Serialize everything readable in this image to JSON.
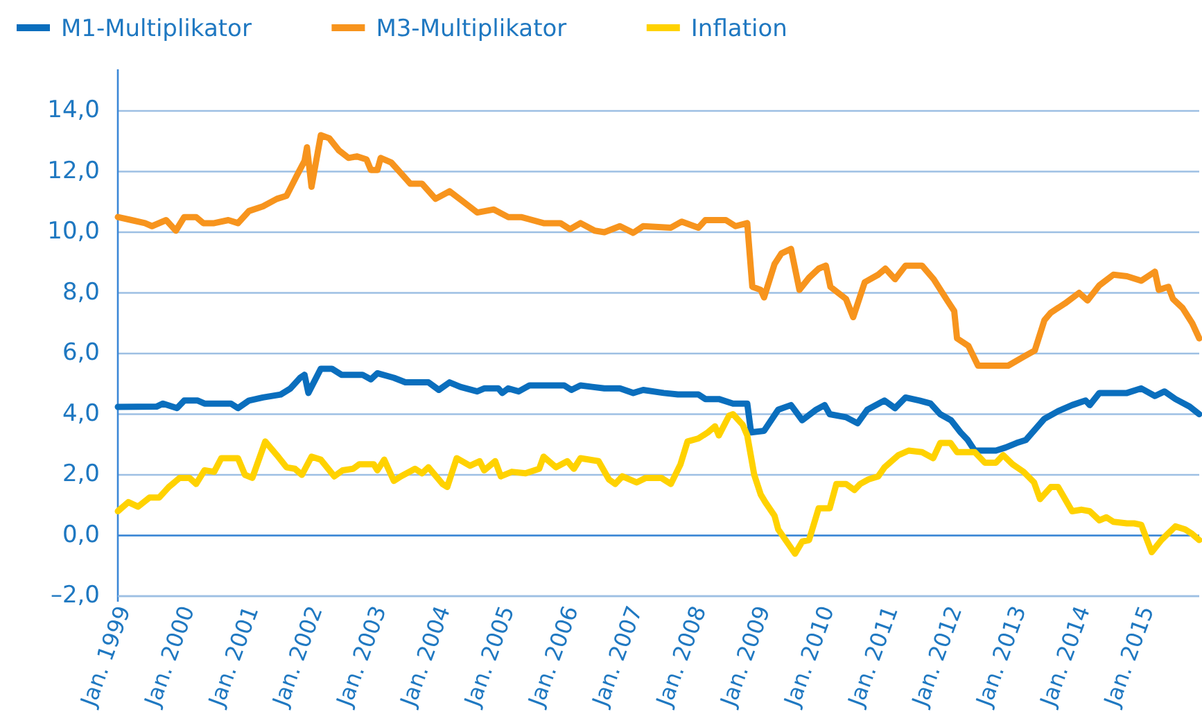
{
  "chart_data": {
    "type": "line",
    "xlim": [
      "1999-01-01",
      "2015-11-28"
    ],
    "ylim": [
      -2,
      14
    ],
    "xticks": [
      {
        "value": "1999-01",
        "label": "Jan. 1999"
      },
      {
        "value": "2000-01",
        "label": "Jan. 2000"
      },
      {
        "value": "2001-01",
        "label": "Jan. 2001"
      },
      {
        "value": "2002-01",
        "label": "Jan. 2002"
      },
      {
        "value": "2003-01",
        "label": "Jan. 2003"
      },
      {
        "value": "2004-01",
        "label": "Jan. 2004"
      },
      {
        "value": "2005-01",
        "label": "Jan. 2005"
      },
      {
        "value": "2006-01",
        "label": "Jan. 2006"
      },
      {
        "value": "2007-01",
        "label": "Jan. 2007"
      },
      {
        "value": "2008-01",
        "label": "Jan. 2008"
      },
      {
        "value": "2009-01",
        "label": "Jan. 2009"
      },
      {
        "value": "2010-01",
        "label": "Jan. 2010"
      },
      {
        "value": "2011-01",
        "label": "Jan. 2011"
      },
      {
        "value": "2012-01",
        "label": "Jan. 2012"
      },
      {
        "value": "2013-01",
        "label": "Jan. 2013"
      },
      {
        "value": "2014-01",
        "label": "Jan. 2014"
      },
      {
        "value": "2015-01",
        "label": "Jan. 2015"
      }
    ],
    "yticks": [
      {
        "value": -2,
        "label": "–2,0"
      },
      {
        "value": 0,
        "label": "0,0"
      },
      {
        "value": 2,
        "label": "2,0"
      },
      {
        "value": 4,
        "label": "4,0"
      },
      {
        "value": 6,
        "label": "6,0"
      },
      {
        "value": 8,
        "label": "8,0"
      },
      {
        "value": 10,
        "label": "10,0"
      },
      {
        "value": 12,
        "label": "12,0"
      },
      {
        "value": 14,
        "label": "14,0"
      }
    ],
    "grid": "y",
    "ref_lines": [
      {
        "axis": "y",
        "value": 0,
        "color": "#3b87d6"
      }
    ],
    "legend": "top left",
    "marker": "none",
    "line_style": "solid",
    "series": [
      {
        "name": "M1-Multiplikator",
        "color": "#0a6ebd",
        "x": [
          "1999-01-01",
          "1999-08-10",
          "1999-09-16",
          "1999-12-05",
          "2000-01-15",
          "2000-04-01",
          "2000-05-10",
          "2000-10-08",
          "2000-11-17",
          "2001-01-19",
          "2001-04-08",
          "2001-07-19",
          "2001-09-13",
          "2001-11-07",
          "2001-12-02",
          "2001-12-24",
          "2002-03-05",
          "2002-05-07",
          "2002-07-01",
          "2002-10-29",
          "2002-12-16",
          "2003-01-22",
          "2003-04-26",
          "2003-07-01",
          "2003-11-10",
          "2004-01-08",
          "2004-03-09",
          "2004-05-10",
          "2004-08-14",
          "2004-09-23",
          "2004-12-13",
          "2005-01-04",
          "2005-02-07",
          "2005-04-08",
          "2005-06-09",
          "2005-12-24",
          "2006-02-03",
          "2006-03-27",
          "2006-06-02",
          "2006-08-10",
          "2006-11-07",
          "2007-01-22",
          "2007-03-20",
          "2007-07-15",
          "2007-10-04",
          "2008-01-29",
          "2008-03-09",
          "2008-05-25",
          "2008-08-14",
          "2008-11-03",
          "2008-11-25",
          "2009-02-07",
          "2009-04-29",
          "2009-07-11",
          "2009-09-13",
          "2009-12-02",
          "2010-01-19",
          "2010-02-17",
          "2010-05-21",
          "2010-07-26",
          "2010-09-20",
          "2010-12-27",
          "2011-02-25",
          "2011-04-26",
          "2011-07-15",
          "2011-09-16",
          "2011-11-10",
          "2012-01-11",
          "2012-03-05",
          "2012-04-15",
          "2012-05-25",
          "2012-09-23",
          "2012-11-17",
          "2013-01-19",
          "2013-03-13",
          "2013-06-27",
          "2013-09-13",
          "2013-12-02",
          "2014-02-17",
          "2014-03-13",
          "2014-05-07",
          "2014-10-11",
          "2015-01-01",
          "2015-03-20",
          "2015-05-14",
          "2015-07-15",
          "2015-10-04",
          "2015-11-28"
        ],
        "values": [
          4.24,
          4.25,
          4.35,
          4.2,
          4.45,
          4.45,
          4.35,
          4.35,
          4.2,
          4.45,
          4.55,
          4.65,
          4.85,
          5.2,
          5.3,
          4.7,
          5.5,
          5.5,
          5.3,
          5.3,
          5.15,
          5.35,
          5.2,
          5.05,
          5.05,
          4.8,
          5.05,
          4.9,
          4.75,
          4.85,
          4.85,
          4.7,
          4.85,
          4.75,
          4.95,
          4.95,
          4.8,
          4.95,
          4.9,
          4.85,
          4.85,
          4.7,
          4.8,
          4.7,
          4.65,
          4.65,
          4.5,
          4.5,
          4.35,
          4.35,
          3.4,
          3.45,
          4.15,
          4.3,
          3.8,
          4.15,
          4.3,
          4.0,
          3.9,
          3.7,
          4.15,
          4.45,
          4.2,
          4.55,
          4.45,
          4.35,
          4.0,
          3.8,
          3.4,
          3.15,
          2.8,
          2.8,
          2.9,
          3.05,
          3.15,
          3.85,
          4.1,
          4.3,
          4.45,
          4.3,
          4.7,
          4.7,
          4.85,
          4.6,
          4.75,
          4.5,
          4.25,
          4.0
        ]
      },
      {
        "name": "M3-Multiplikator",
        "color": "#f7941d",
        "x": [
          "1999-01-01",
          "1999-03-20",
          "1999-06-05",
          "1999-07-15",
          "1999-10-04",
          "1999-11-28",
          "2000-01-15",
          "2000-03-23",
          "2000-05-03",
          "2000-07-04",
          "2000-09-23",
          "2000-11-17",
          "2001-01-19",
          "2001-04-08",
          "2001-06-27",
          "2001-08-21",
          "2001-10-22",
          "2001-12-02",
          "2001-12-16",
          "2002-01-11",
          "2002-03-05",
          "2002-04-22",
          "2002-06-16",
          "2002-08-10",
          "2002-09-27",
          "2002-11-21",
          "2002-12-16",
          "2003-01-22",
          "2003-02-10",
          "2003-04-11",
          "2003-06-05",
          "2003-07-29",
          "2003-10-04",
          "2003-12-20",
          "2004-03-09",
          "2004-05-28",
          "2004-08-14",
          "2004-11-17",
          "2005-02-07",
          "2005-04-22",
          "2005-08-28",
          "2005-12-02",
          "2006-01-26",
          "2006-03-27",
          "2006-06-16",
          "2006-08-10",
          "2006-11-07",
          "2007-01-22",
          "2007-03-20",
          "2007-08-25",
          "2007-10-26",
          "2008-01-29",
          "2008-03-09",
          "2008-07-04",
          "2008-08-28",
          "2008-11-03",
          "2008-12-02",
          "2009-01-19",
          "2009-02-07",
          "2009-04-08",
          "2009-05-17",
          "2009-07-11",
          "2009-08-28",
          "2009-10-22",
          "2009-12-16",
          "2010-01-26",
          "2010-02-21",
          "2010-05-21",
          "2010-07-01",
          "2010-09-05",
          "2010-11-21",
          "2011-01-01",
          "2011-02-25",
          "2011-04-26",
          "2011-07-29",
          "2011-10-04",
          "2011-12-20",
          "2012-01-29",
          "2012-02-14",
          "2012-04-19",
          "2012-06-13",
          "2012-12-02",
          "2013-03-02",
          "2013-05-03",
          "2013-06-27",
          "2013-08-03",
          "2013-10-22",
          "2014-01-11",
          "2014-02-28",
          "2014-05-07",
          "2014-07-26",
          "2014-10-11",
          "2015-01-01",
          "2015-03-20",
          "2015-04-11",
          "2015-06-05",
          "2015-07-01",
          "2015-08-25",
          "2015-10-19",
          "2015-11-28"
        ],
        "values": [
          10.5,
          10.4,
          10.3,
          10.2,
          10.4,
          10.05,
          10.5,
          10.5,
          10.3,
          10.3,
          10.4,
          10.3,
          10.7,
          10.85,
          11.1,
          11.2,
          11.9,
          12.35,
          12.8,
          11.5,
          13.2,
          13.1,
          12.7,
          12.45,
          12.5,
          12.4,
          12.05,
          12.05,
          12.45,
          12.3,
          11.95,
          11.6,
          11.6,
          11.1,
          11.35,
          11.0,
          10.65,
          10.75,
          10.5,
          10.5,
          10.3,
          10.3,
          10.1,
          10.3,
          10.05,
          10.0,
          10.2,
          9.98,
          10.2,
          10.15,
          10.35,
          10.15,
          10.4,
          10.4,
          10.2,
          10.3,
          8.2,
          8.1,
          7.85,
          8.95,
          9.3,
          9.45,
          8.1,
          8.5,
          8.8,
          8.9,
          8.2,
          7.8,
          7.2,
          8.35,
          8.6,
          8.8,
          8.45,
          8.9,
          8.9,
          8.45,
          7.75,
          7.4,
          6.5,
          6.25,
          5.6,
          5.6,
          5.9,
          6.1,
          7.1,
          7.35,
          7.65,
          8.0,
          7.75,
          8.25,
          8.6,
          8.55,
          8.4,
          8.7,
          8.1,
          8.2,
          7.8,
          7.5,
          7.0,
          6.5
        ]
      },
      {
        "name": "Inflation",
        "color": "#ffd200",
        "x": [
          "1999-01-01",
          "1999-03-02",
          "1999-04-26",
          "1999-07-01",
          "1999-08-25",
          "1999-10-19",
          "1999-12-20",
          "2000-02-14",
          "2000-03-23",
          "2000-05-10",
          "2000-07-04",
          "2000-08-14",
          "2000-11-17",
          "2000-12-27",
          "2001-02-07",
          "2001-04-22",
          "2001-06-27",
          "2001-08-21",
          "2001-10-08",
          "2001-11-17",
          "2002-01-11",
          "2002-03-05",
          "2002-05-21",
          "2002-07-08",
          "2002-09-05",
          "2002-10-11",
          "2003-01-01",
          "2003-01-22",
          "2003-03-02",
          "2003-04-26",
          "2003-06-05",
          "2003-08-25",
          "2003-10-04",
          "2003-11-10",
          "2004-01-29",
          "2004-02-25",
          "2004-04-19",
          "2004-07-04",
          "2004-08-28",
          "2004-09-23",
          "2004-11-25",
          "2004-12-27",
          "2005-02-28",
          "2005-05-17",
          "2005-08-03",
          "2005-08-28",
          "2005-11-07",
          "2006-01-11",
          "2006-02-17",
          "2006-03-27",
          "2006-07-08",
          "2006-09-05",
          "2006-10-11",
          "2006-11-21",
          "2007-02-10",
          "2007-04-04",
          "2007-07-01",
          "2007-08-25",
          "2007-10-19",
          "2007-11-28",
          "2008-01-29",
          "2008-03-23",
          "2008-05-03",
          "2008-05-25",
          "2008-07-22",
          "2008-08-14",
          "2008-10-08",
          "2008-11-03",
          "2008-12-13",
          "2009-01-19",
          "2009-02-14",
          "2009-04-08",
          "2009-04-29",
          "2009-08-03",
          "2009-09-13",
          "2009-10-22",
          "2009-12-16",
          "2010-02-17",
          "2010-03-27",
          "2010-05-21",
          "2010-07-08",
          "2010-08-10",
          "2010-09-27",
          "2010-11-21",
          "2010-12-27",
          "2011-03-16",
          "2011-05-14",
          "2011-07-29",
          "2011-10-01",
          "2011-11-10",
          "2012-01-08",
          "2012-02-14",
          "2012-05-25",
          "2012-07-22",
          "2012-09-23",
          "2012-11-03",
          "2012-12-27",
          "2013-02-28",
          "2013-04-29",
          "2013-06-02",
          "2013-08-03",
          "2013-09-13",
          "2013-12-02",
          "2014-01-26",
          "2014-03-13",
          "2014-05-07",
          "2014-06-16",
          "2014-07-26",
          "2014-10-11",
          "2014-11-21",
          "2015-01-01",
          "2015-03-02",
          "2015-04-26",
          "2015-07-15",
          "2015-09-09",
          "2015-10-19",
          "2015-11-28"
        ],
        "values": [
          0.8,
          1.1,
          0.95,
          1.25,
          1.25,
          1.6,
          1.9,
          1.9,
          1.7,
          2.15,
          2.1,
          2.55,
          2.55,
          2.0,
          1.9,
          3.1,
          2.65,
          2.25,
          2.2,
          2.0,
          2.6,
          2.5,
          1.95,
          2.15,
          2.2,
          2.35,
          2.35,
          2.15,
          2.5,
          1.8,
          1.95,
          2.2,
          2.05,
          2.25,
          1.7,
          1.6,
          2.55,
          2.3,
          2.45,
          2.15,
          2.45,
          1.95,
          2.1,
          2.05,
          2.2,
          2.6,
          2.25,
          2.45,
          2.2,
          2.55,
          2.45,
          1.85,
          1.7,
          1.95,
          1.75,
          1.9,
          1.9,
          1.7,
          2.35,
          3.1,
          3.2,
          3.4,
          3.6,
          3.3,
          3.95,
          4.0,
          3.65,
          3.3,
          2.0,
          1.35,
          1.1,
          0.65,
          0.2,
          -0.6,
          -0.2,
          -0.15,
          0.9,
          0.9,
          1.7,
          1.7,
          1.5,
          1.7,
          1.85,
          1.95,
          2.25,
          2.65,
          2.8,
          2.75,
          2.55,
          3.05,
          3.05,
          2.75,
          2.75,
          2.4,
          2.4,
          2.65,
          2.35,
          2.1,
          1.75,
          1.2,
          1.6,
          1.6,
          0.8,
          0.85,
          0.8,
          0.5,
          0.6,
          0.45,
          0.4,
          0.4,
          0.35,
          -0.55,
          -0.15,
          0.3,
          0.2,
          0.05,
          -0.15
        ]
      }
    ]
  }
}
